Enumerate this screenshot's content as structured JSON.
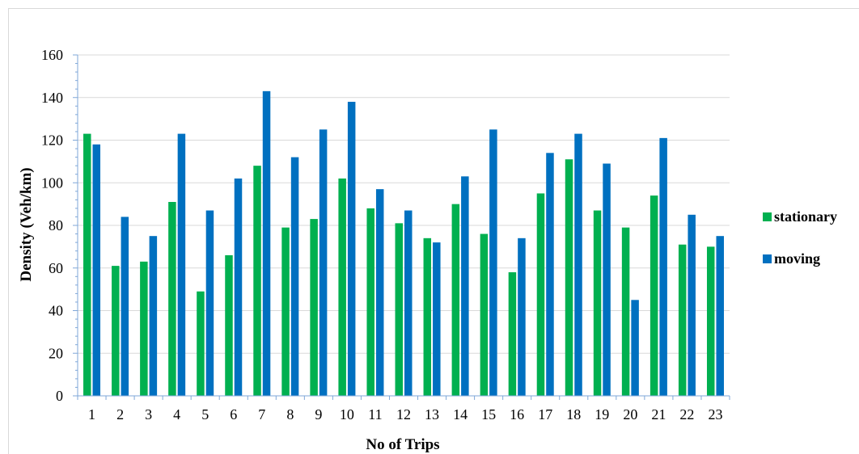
{
  "chart_data": {
    "type": "bar",
    "categories": [
      "1",
      "2",
      "3",
      "4",
      "5",
      "6",
      "7",
      "8",
      "9",
      "10",
      "11",
      "12",
      "13",
      "14",
      "15",
      "16",
      "17",
      "18",
      "19",
      "20",
      "21",
      "22",
      "23"
    ],
    "series": [
      {
        "name": "stationary",
        "color": "#00b050",
        "values": [
          123,
          61,
          63,
          91,
          49,
          66,
          108,
          79,
          83,
          102,
          88,
          81,
          74,
          90,
          76,
          58,
          95,
          111,
          87,
          79,
          94,
          71,
          70
        ]
      },
      {
        "name": "moving",
        "color": "#0070c0",
        "values": [
          118,
          84,
          75,
          123,
          87,
          102,
          143,
          112,
          125,
          138,
          97,
          87,
          72,
          103,
          125,
          74,
          114,
          123,
          109,
          45,
          121,
          85,
          75
        ]
      }
    ],
    "xlabel": "No of Trips",
    "ylabel": "Density (Veh/km)",
    "ylim": [
      0,
      160
    ],
    "yticks": [
      0,
      20,
      40,
      60,
      80,
      100,
      120,
      140,
      160
    ],
    "grid": true,
    "legend_position": "right"
  }
}
